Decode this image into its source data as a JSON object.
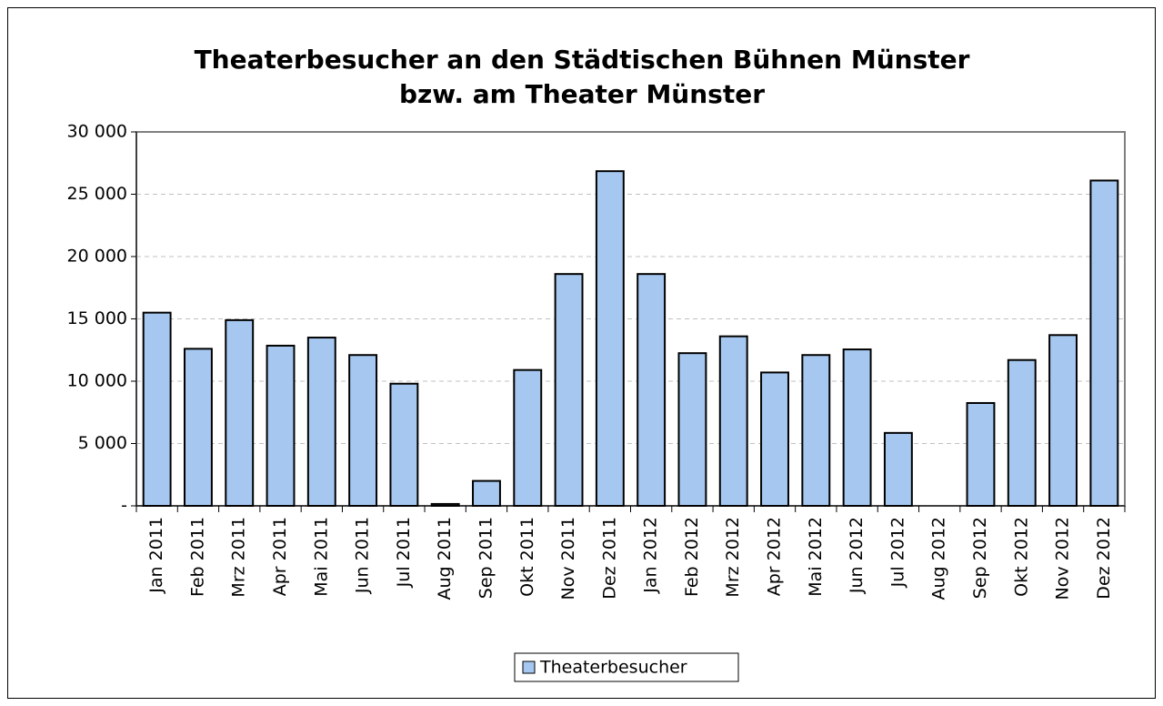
{
  "chart_data": {
    "type": "bar",
    "title": [
      "Theaterbesucher an den Städtischen Bühnen Münster",
      "bzw. am Theater Münster"
    ],
    "categories": [
      "Jan 2011",
      "Feb 2011",
      "Mrz 2011",
      "Apr 2011",
      "Mai 2011",
      "Jun 2011",
      "Jul 2011",
      "Aug 2011",
      "Sep 2011",
      "Okt 2011",
      "Nov 2011",
      "Dez 2011",
      "Jan 2012",
      "Feb 2012",
      "Mrz 2012",
      "Apr 2012",
      "Mai 2012",
      "Jun 2012",
      "Jul 2012",
      "Aug 2012",
      "Sep 2012",
      "Okt 2012",
      "Nov 2012",
      "Dez 2012"
    ],
    "series": [
      {
        "name": "Theaterbesucher",
        "color": "#a6c8f0",
        "values": [
          15500,
          12600,
          14900,
          12850,
          13500,
          12100,
          9800,
          150,
          2000,
          10900,
          18600,
          26850,
          18600,
          12250,
          13600,
          10700,
          12100,
          12550,
          5850,
          0,
          8250,
          11700,
          13700,
          26100
        ]
      }
    ],
    "ylim": [
      0,
      30000
    ],
    "yticks": [
      {
        "value": 0,
        "label": "-"
      },
      {
        "value": 5000,
        "label": "5 000"
      },
      {
        "value": 10000,
        "label": "10 000"
      },
      {
        "value": 15000,
        "label": "15 000"
      },
      {
        "value": 20000,
        "label": "20 000"
      },
      {
        "value": 25000,
        "label": "25 000"
      },
      {
        "value": 30000,
        "label": "30 000"
      }
    ],
    "grid": true
  }
}
